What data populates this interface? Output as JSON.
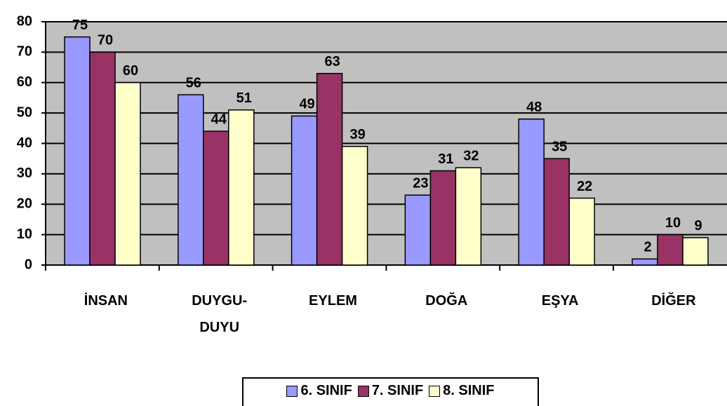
{
  "chart_data": {
    "type": "bar",
    "categories": [
      "İNSAN",
      "DUYGU-DUYU",
      "EYLEM",
      "DOĞA",
      "EŞYA",
      "DİĞER"
    ],
    "series": [
      {
        "name": "6. SINIF",
        "color": "#9999ff",
        "values": [
          75,
          56,
          49,
          23,
          48,
          2
        ]
      },
      {
        "name": "7. SINIF",
        "color": "#993366",
        "values": [
          70,
          44,
          63,
          31,
          35,
          10
        ]
      },
      {
        "name": "8. SINIF",
        "color": "#ffffcc",
        "values": [
          60,
          51,
          39,
          32,
          22,
          9
        ]
      }
    ],
    "ylim": [
      0,
      80
    ],
    "yticks": [
      0,
      10,
      20,
      30,
      40,
      50,
      60,
      70,
      80
    ],
    "grid": true,
    "legend": "bottom",
    "plot_background": "#c0c0c0"
  }
}
